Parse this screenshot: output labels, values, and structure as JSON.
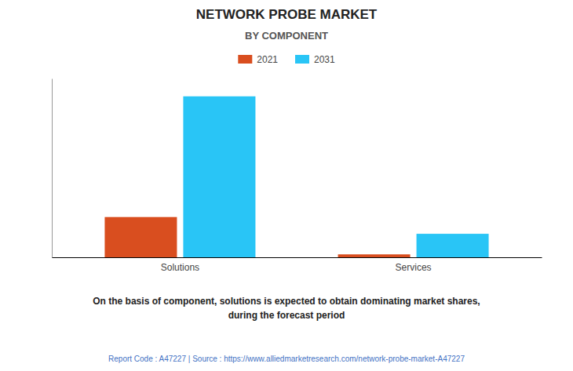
{
  "chart_data": {
    "type": "bar",
    "title": "NETWORK PROBE MARKET",
    "subtitle": "BY COMPONENT",
    "categories": [
      "Solutions",
      "Services"
    ],
    "series": [
      {
        "name": "2021",
        "color": "#D94E1F",
        "values": [
          1.8,
          0.13
        ]
      },
      {
        "name": "2031",
        "color": "#29C5F6",
        "values": [
          7.2,
          1.05
        ]
      }
    ],
    "ylim": [
      0,
      8
    ],
    "grid": false,
    "legend": "top",
    "tick_labels": "x",
    "annotations": [
      "On the basis of component, solutions is expected to obtain dominating market shares,\nduring the forecast period",
      "Report Code : A47227  |  Source : https://www.alliedmarketresearch.com/network-probe-market-A47227"
    ]
  }
}
